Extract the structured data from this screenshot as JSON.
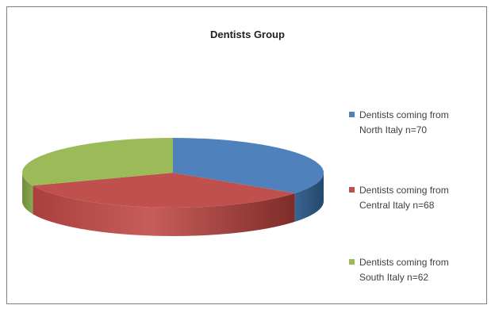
{
  "chart_data": {
    "type": "pie",
    "title": "Dentists Group",
    "categories": [
      "Dentists coming  from North Italy n=70",
      "Dentists coming  from Central Italy n=68",
      "Dentists coming  from South Italy n=62"
    ],
    "values": [
      70,
      68,
      62
    ],
    "colors": [
      "#4f81bd",
      "#c0504d",
      "#9bbb59"
    ],
    "three_d": true,
    "legend_position": "right"
  },
  "legend": [
    {
      "line1": "Dentists coming  from",
      "line2": "North Italy n=70"
    },
    {
      "line1": "Dentists coming  from",
      "line2": "Central Italy n=68"
    },
    {
      "line1": "Dentists coming  from",
      "line2": "South Italy n=62"
    }
  ]
}
